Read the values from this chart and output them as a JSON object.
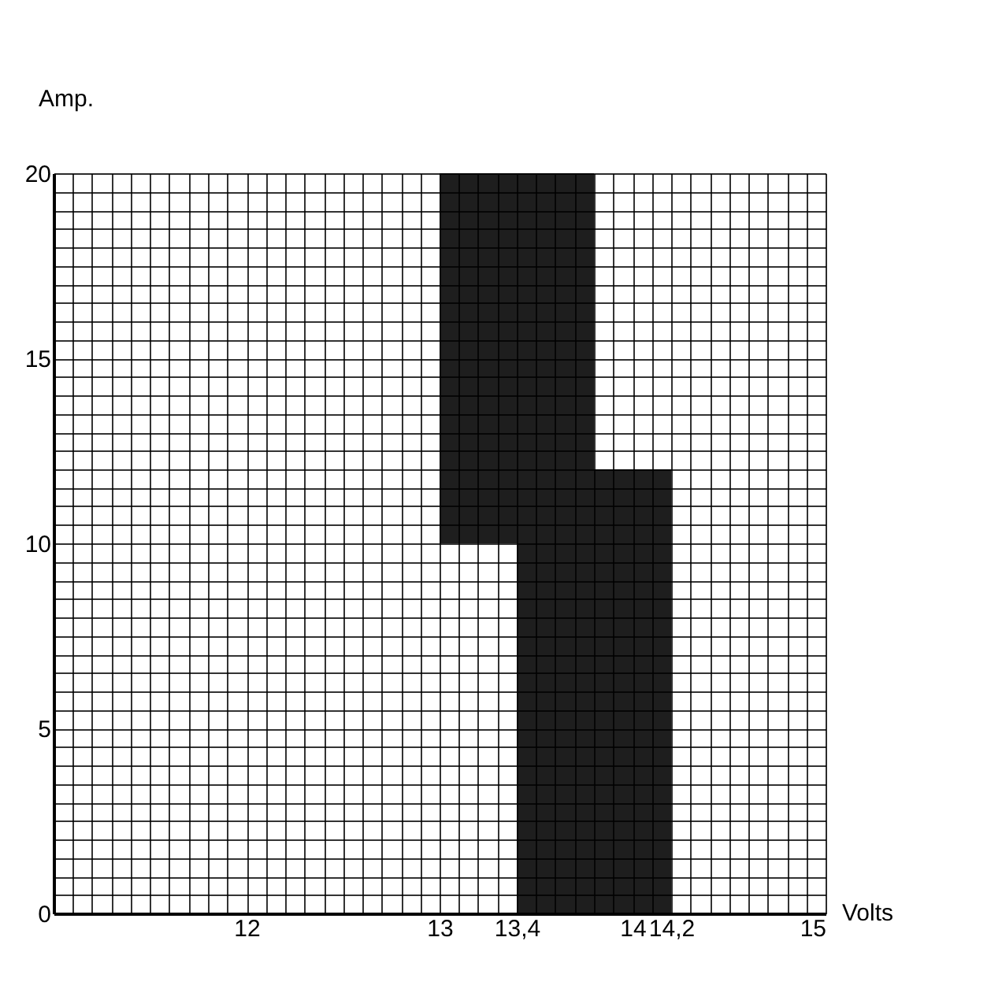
{
  "chart_data": {
    "type": "bar",
    "xlabel": "Volts",
    "ylabel": "Amp.",
    "x": [
      13.2,
      13.6,
      14.0
    ],
    "base": [
      10,
      0,
      0
    ],
    "values": [
      10,
      20,
      12
    ],
    "color": "#1e1e1e",
    "xlim": [
      11,
      15
    ],
    "ylim": [
      0,
      20
    ],
    "xticks": [
      {
        "value": 11,
        "label": null
      },
      12,
      13,
      14,
      15,
      {
        "value": 13.4,
        "label": "13,4"
      },
      {
        "value": 14.2,
        "label": "14,2"
      },
      {
        "value": 11.1,
        "label": null
      },
      {
        "value": 11.2,
        "label": null
      },
      {
        "value": 11.3,
        "label": null
      },
      {
        "value": 11.4,
        "label": null
      },
      {
        "value": 11.5,
        "label": null
      },
      {
        "value": 11.6,
        "label": null
      },
      {
        "value": 11.7,
        "label": null
      },
      {
        "value": 11.8,
        "label": null
      },
      {
        "value": 11.9,
        "label": null
      },
      {
        "value": 12.1,
        "label": null
      },
      {
        "value": 12.2,
        "label": null
      },
      {
        "value": 12.3,
        "label": null
      },
      {
        "value": 12.4,
        "label": null
      },
      {
        "value": 12.5,
        "label": null
      },
      {
        "value": 12.6,
        "label": null
      },
      {
        "value": 12.7,
        "label": null
      },
      {
        "value": 12.8,
        "label": null
      },
      {
        "value": 12.9,
        "label": null
      },
      {
        "value": 13.1,
        "label": null
      },
      {
        "value": 13.2,
        "label": null
      },
      {
        "value": 13.3,
        "label": null
      },
      {
        "value": 13.5,
        "label": null
      },
      {
        "value": 13.6,
        "label": null
      },
      {
        "value": 13.7,
        "label": null
      },
      {
        "value": 13.8,
        "label": null
      },
      {
        "value": 13.9,
        "label": null
      },
      {
        "value": 14.1,
        "label": null
      },
      {
        "value": 14.3,
        "label": null
      },
      {
        "value": 14.4,
        "label": null
      },
      {
        "value": 14.5,
        "label": null
      },
      {
        "value": 14.6,
        "label": null
      },
      {
        "value": 14.7,
        "label": null
      },
      {
        "value": 14.8,
        "label": null
      },
      {
        "value": 14.9,
        "label": null
      }
    ],
    "yticks": [
      0,
      5,
      10,
      15,
      20,
      {
        "value": 0.5,
        "label": null
      },
      {
        "value": 1,
        "label": null
      },
      {
        "value": 1.5,
        "label": null
      },
      {
        "value": 2,
        "label": null
      },
      {
        "value": 2.5,
        "label": null
      },
      {
        "value": 3,
        "label": null
      },
      {
        "value": 3.5,
        "label": null
      },
      {
        "value": 4,
        "label": null
      },
      {
        "value": 4.5,
        "label": null
      },
      {
        "value": 5.5,
        "label": null
      },
      {
        "value": 6,
        "label": null
      },
      {
        "value": 6.5,
        "label": null
      },
      {
        "value": 7,
        "label": null
      },
      {
        "value": 7.5,
        "label": null
      },
      {
        "value": 8,
        "label": null
      },
      {
        "value": 8.5,
        "label": null
      },
      {
        "value": 9,
        "label": null
      },
      {
        "value": 9.5,
        "label": null
      },
      {
        "value": 10.5,
        "label": null
      },
      {
        "value": 11,
        "label": null
      },
      {
        "value": 11.5,
        "label": null
      },
      {
        "value": 12,
        "label": null
      },
      {
        "value": 12.5,
        "label": null
      },
      {
        "value": 13,
        "label": null
      },
      {
        "value": 13.5,
        "label": null
      },
      {
        "value": 14,
        "label": null
      },
      {
        "value": 14.5,
        "label": null
      },
      {
        "value": 15.5,
        "label": null
      },
      {
        "value": 16,
        "label": null
      },
      {
        "value": 16.5,
        "label": null
      },
      {
        "value": 17,
        "label": null
      },
      {
        "value": 17.5,
        "label": null
      },
      {
        "value": 18,
        "label": null
      },
      {
        "value": 18.5,
        "label": null
      },
      {
        "value": 19,
        "label": null
      },
      {
        "value": 19.5,
        "label": null
      }
    ],
    "grid": true
  }
}
